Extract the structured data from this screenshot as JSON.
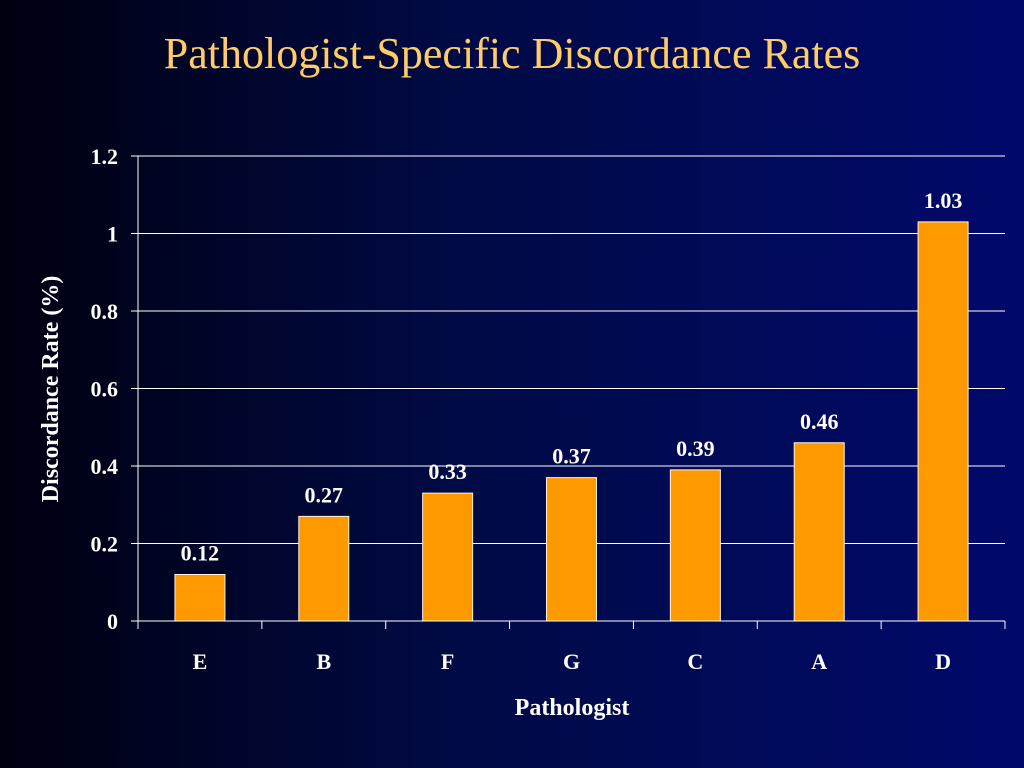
{
  "colors": {
    "title": "#ffcc66",
    "bar": "#ff9900",
    "bar_edge": "#fff2dd",
    "axis": "#ffffff",
    "text": "#ffffff"
  },
  "chart_data": {
    "type": "bar",
    "title": "Pathologist-Specific Discordance Rates",
    "xlabel": "Pathologist",
    "ylabel": "Discordance Rate (%)",
    "categories": [
      "E",
      "B",
      "F",
      "G",
      "C",
      "A",
      "D"
    ],
    "values": [
      0.12,
      0.27,
      0.33,
      0.37,
      0.39,
      0.46,
      1.03
    ],
    "value_labels": [
      "0.12",
      "0.27",
      "0.33",
      "0.37",
      "0.39",
      "0.46",
      "1.03"
    ],
    "ylim": [
      0,
      1.2
    ],
    "yticks": [
      0,
      0.2,
      0.4,
      0.6,
      0.8,
      1,
      1.2
    ],
    "ytick_labels": [
      "0",
      "0.2",
      "0.4",
      "0.6",
      "0.8",
      "1",
      "1.2"
    ],
    "grid": true,
    "legend": "none"
  }
}
